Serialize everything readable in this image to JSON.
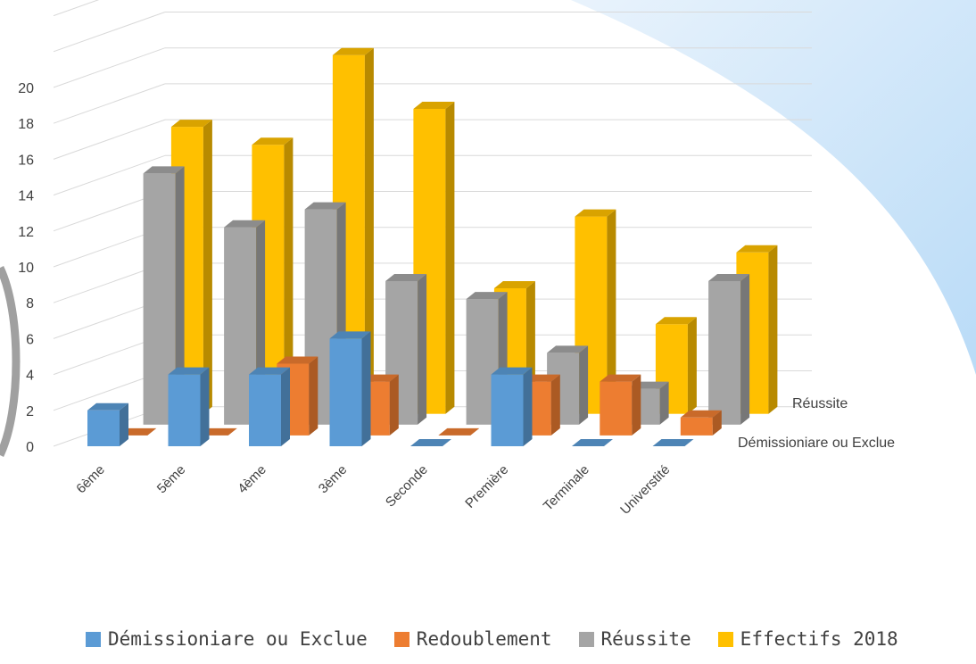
{
  "chart_data": {
    "type": "bar",
    "variant": "3d-column",
    "categories": [
      "6ème",
      "5ème",
      "4ème",
      "3ème",
      "Seconde",
      "Première",
      "Terminale",
      "Universtité"
    ],
    "series": [
      {
        "name": "Démissioniare ou Exclue",
        "color": "#5B9BD5",
        "values": [
          2,
          4,
          4,
          6,
          0,
          4,
          0,
          0
        ]
      },
      {
        "name": "Redoublement",
        "color": "#ED7D31",
        "values": [
          0,
          0,
          4,
          3,
          0,
          3,
          3,
          1
        ]
      },
      {
        "name": "Réussite",
        "color": "#A5A5A5",
        "values": [
          14,
          11,
          12,
          8,
          7,
          4,
          2,
          8
        ]
      },
      {
        "name": "Effectifs 2018",
        "color": "#FFC000",
        "values": [
          16,
          15,
          20,
          17,
          7,
          11,
          5,
          9
        ]
      }
    ],
    "y_ticks": [
      "0",
      "2",
      "4",
      "6",
      "8",
      "10",
      "12",
      "14",
      "16",
      "18",
      "20"
    ],
    "ylim": [
      0,
      20
    ],
    "depth_labels": [
      "Réussite",
      "Démissioniare ou Exclue"
    ],
    "grid": true,
    "legend_position": "bottom"
  }
}
